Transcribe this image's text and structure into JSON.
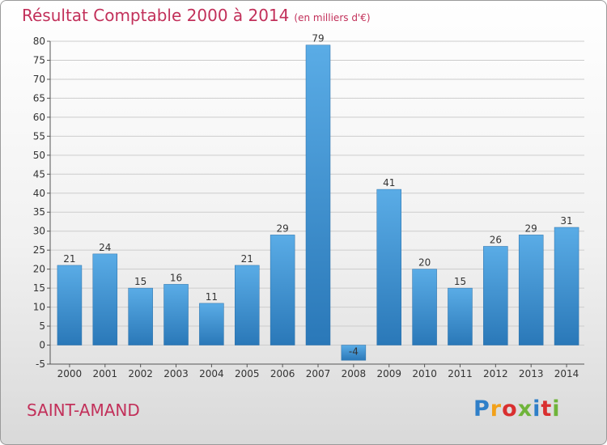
{
  "header": {
    "title": "Résultat Comptable 2000 à 2014",
    "unit": "(en milliers d'€)"
  },
  "footer": {
    "commune": "SAINT-AMAND",
    "logo_text": "Proxiti"
  },
  "colors": {
    "title": "#c2305a",
    "bar_light": "#5aace6",
    "bar_dark": "#2a78b8",
    "grid": "#cccccc"
  },
  "chart_data": {
    "type": "bar",
    "categories": [
      "2000",
      "2001",
      "2002",
      "2003",
      "2004",
      "2005",
      "2006",
      "2007",
      "2008",
      "2009",
      "2010",
      "2011",
      "2012",
      "2013",
      "2014"
    ],
    "values": [
      21,
      24,
      15,
      16,
      11,
      21,
      29,
      79,
      -4,
      41,
      20,
      15,
      26,
      29,
      31
    ],
    "data_labels": [
      "21",
      "24",
      "15",
      "16",
      "11",
      "21",
      "29",
      "79",
      "-4",
      "41",
      "20",
      "15",
      "26",
      "29",
      "31"
    ],
    "ylim": [
      -5,
      80
    ],
    "yticks": [
      -5,
      0,
      5,
      10,
      15,
      20,
      25,
      30,
      35,
      40,
      45,
      50,
      55,
      60,
      65,
      70,
      75,
      80
    ],
    "grid": true,
    "legend": "none"
  }
}
